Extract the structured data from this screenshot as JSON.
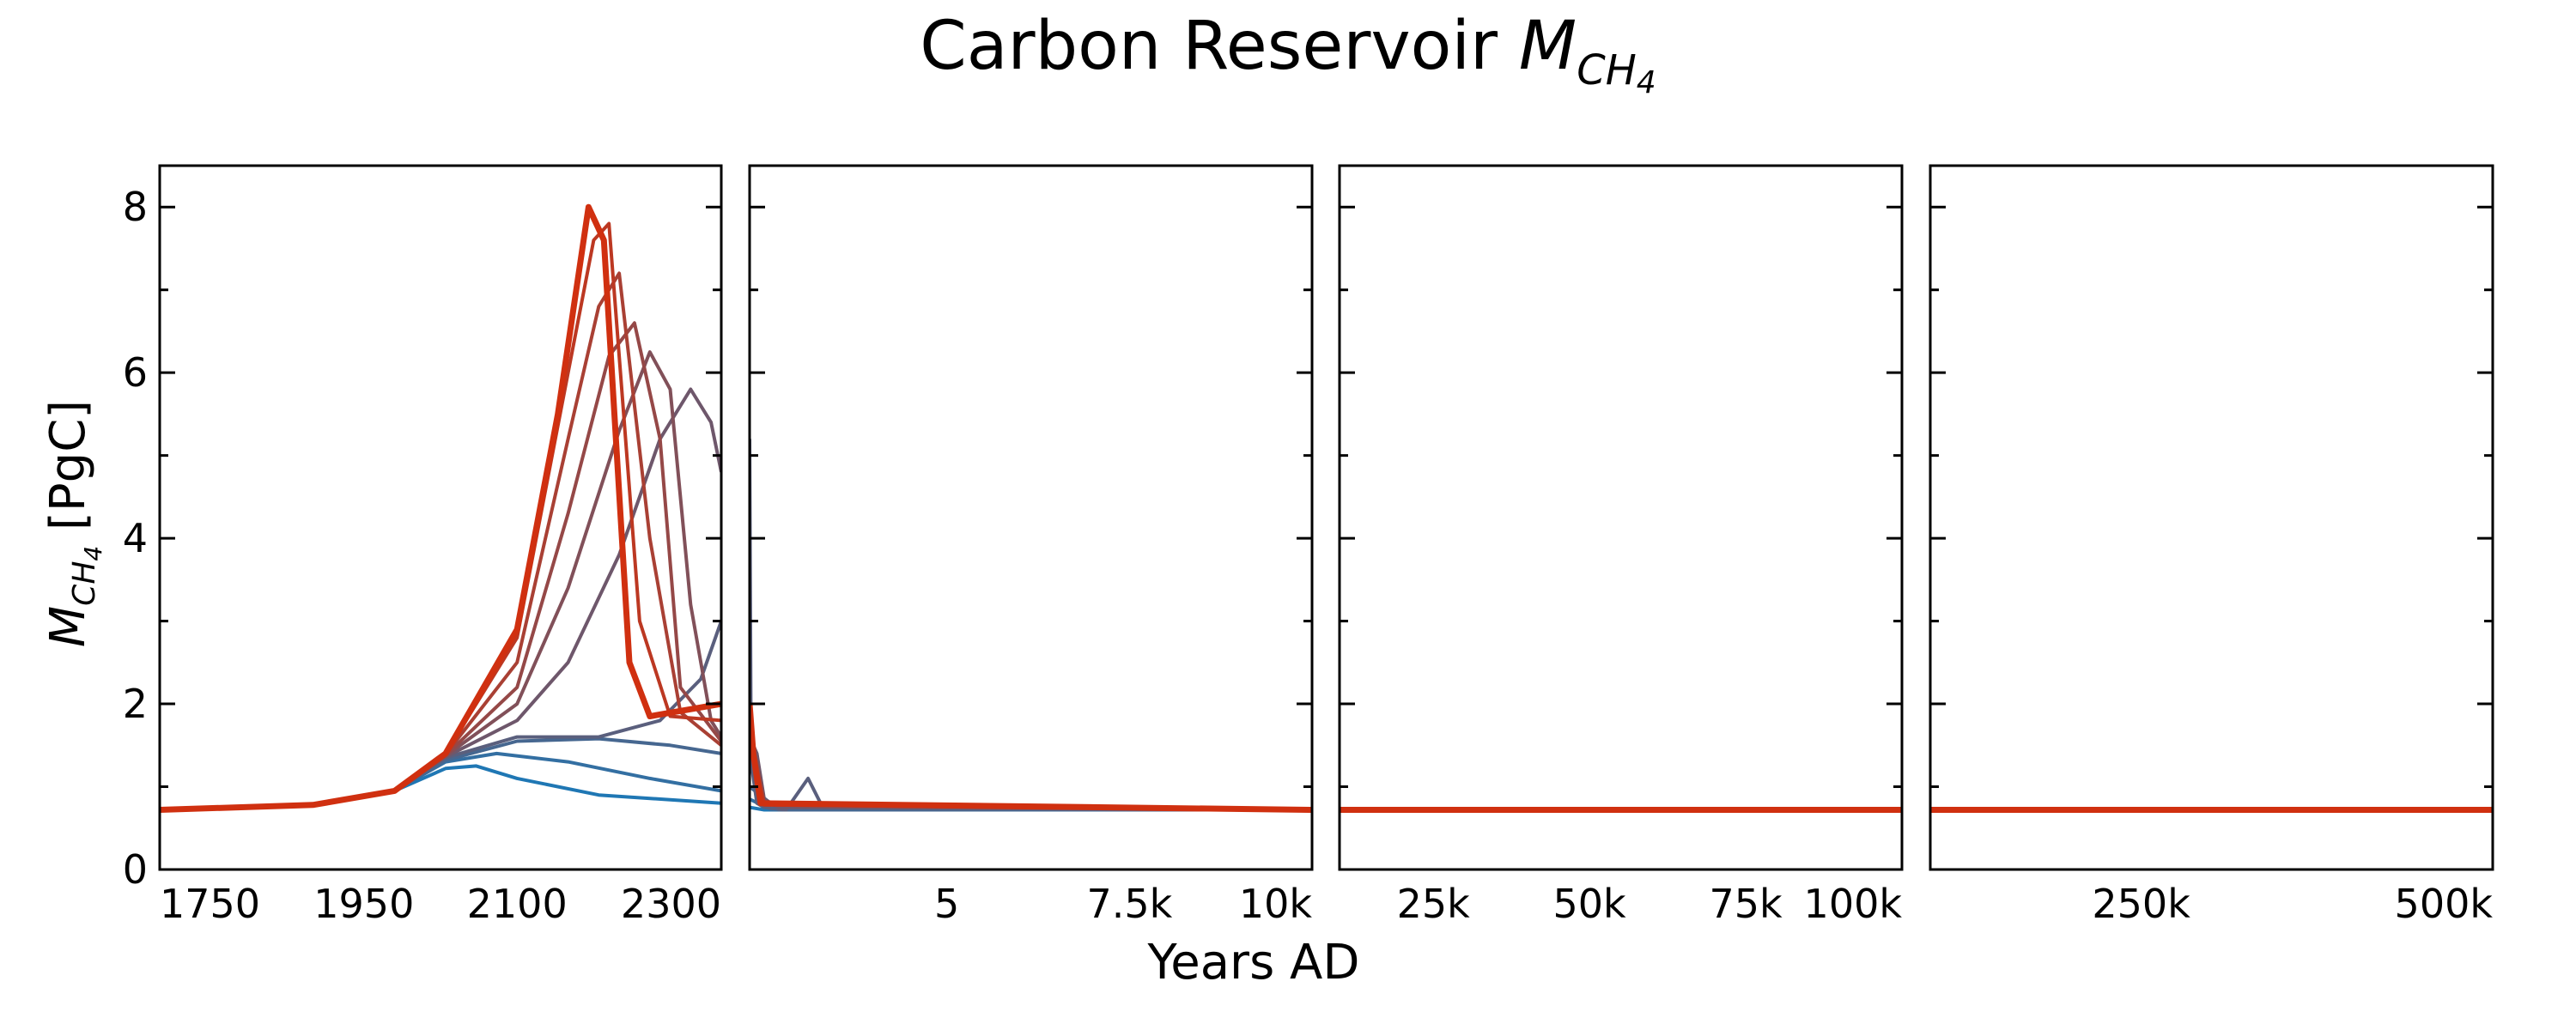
{
  "figure": {
    "title_main": "Carbon Reservoir ",
    "title_math": "M",
    "title_sub": "CH",
    "title_subsub": "4",
    "ylabel_math": "M",
    "ylabel_sub": "CH",
    "ylabel_subsub": "4",
    "ylabel_unit": " [PgC]",
    "xlabel": "Years AD"
  },
  "colors": {
    "start": "#1f77b4",
    "end": "#d03010",
    "axis": "#000000"
  },
  "chart_data": {
    "type": "line",
    "title": "Carbon Reservoir M_CH4",
    "xlabel": "Years AD",
    "ylabel": "M_CH4 [PgC]",
    "ylim": [
      0,
      8.5
    ],
    "yticks": [
      0,
      2,
      4,
      6,
      8
    ],
    "ytick_labels": [
      "0",
      "2",
      "4",
      "6",
      "8"
    ],
    "grid": false,
    "legend": "none",
    "panels": [
      {
        "xlim": [
          1750,
          2300
        ],
        "xtick_labels": [
          "1750",
          "1950",
          "2100",
          "2300"
        ]
      },
      {
        "xlim": [
          2300,
          10000
        ],
        "xtick_labels": [
          "5",
          "7.5k",
          "10k"
        ]
      },
      {
        "xlim": [
          10000,
          100000
        ],
        "xtick_labels": [
          "25k",
          "50k",
          "75k",
          "100k"
        ]
      },
      {
        "xlim": [
          100000,
          500000
        ],
        "xtick_labels": [
          "250k",
          "500k"
        ]
      }
    ],
    "series": [
      {
        "values_panel1": [
          [
            1750,
            0.72
          ],
          [
            1900,
            0.78
          ],
          [
            1980,
            0.95
          ],
          [
            2030,
            1.22
          ],
          [
            2060,
            1.25
          ],
          [
            2100,
            1.1
          ],
          [
            2180,
            0.9
          ],
          [
            2300,
            0.8
          ]
        ],
        "values_panel2": [
          [
            2300,
            0.75
          ],
          [
            2500,
            0.72
          ],
          [
            10000,
            0.72
          ]
        ]
      },
      {
        "values_panel1": [
          [
            1750,
            0.72
          ],
          [
            1900,
            0.78
          ],
          [
            1980,
            0.95
          ],
          [
            2030,
            1.3
          ],
          [
            2080,
            1.4
          ],
          [
            2150,
            1.3
          ],
          [
            2230,
            1.1
          ],
          [
            2300,
            0.95
          ]
        ],
        "values_panel2": [
          [
            2300,
            0.85
          ],
          [
            2600,
            0.72
          ],
          [
            10000,
            0.72
          ]
        ]
      },
      {
        "values_panel1": [
          [
            1750,
            0.72
          ],
          [
            1900,
            0.78
          ],
          [
            1980,
            0.95
          ],
          [
            2030,
            1.32
          ],
          [
            2100,
            1.55
          ],
          [
            2180,
            1.58
          ],
          [
            2250,
            1.5
          ],
          [
            2300,
            1.4
          ]
        ],
        "values_panel2": [
          [
            2300,
            1.0
          ],
          [
            2700,
            0.72
          ],
          [
            10000,
            0.72
          ]
        ]
      },
      {
        "values_panel1": [
          [
            1750,
            0.72
          ],
          [
            1900,
            0.78
          ],
          [
            1980,
            0.95
          ],
          [
            2030,
            1.35
          ],
          [
            2100,
            1.6
          ],
          [
            2180,
            1.6
          ],
          [
            2240,
            1.8
          ],
          [
            2280,
            2.3
          ],
          [
            2300,
            3.0
          ]
        ],
        "values_panel2": [
          [
            2300,
            5.2
          ],
          [
            2320,
            1.3
          ],
          [
            2400,
            0.8
          ],
          [
            2500,
            0.75
          ],
          [
            2800,
            0.72
          ],
          [
            3100,
            1.1
          ],
          [
            3300,
            0.75
          ],
          [
            10000,
            0.72
          ]
        ]
      },
      {
        "values_panel1": [
          [
            1750,
            0.72
          ],
          [
            1900,
            0.78
          ],
          [
            1980,
            0.95
          ],
          [
            2030,
            1.36
          ],
          [
            2100,
            1.8
          ],
          [
            2150,
            2.5
          ],
          [
            2200,
            3.8
          ],
          [
            2240,
            5.2
          ],
          [
            2270,
            5.8
          ],
          [
            2290,
            5.4
          ],
          [
            2300,
            4.8
          ]
        ],
        "values_panel2": [
          [
            2300,
            1.6
          ],
          [
            2400,
            1.4
          ],
          [
            2500,
            0.85
          ],
          [
            2700,
            0.75
          ],
          [
            10000,
            0.72
          ]
        ]
      },
      {
        "values_panel1": [
          [
            1750,
            0.72
          ],
          [
            1900,
            0.78
          ],
          [
            1980,
            0.95
          ],
          [
            2030,
            1.37
          ],
          [
            2100,
            2.0
          ],
          [
            2150,
            3.4
          ],
          [
            2200,
            5.3
          ],
          [
            2230,
            6.25
          ],
          [
            2250,
            5.8
          ],
          [
            2270,
            3.2
          ],
          [
            2290,
            1.8
          ],
          [
            2300,
            1.6
          ]
        ],
        "values_panel2": [
          [
            2300,
            1.55
          ],
          [
            2400,
            1.3
          ],
          [
            2500,
            0.8
          ],
          [
            10000,
            0.72
          ]
        ]
      },
      {
        "values_panel1": [
          [
            1750,
            0.72
          ],
          [
            1900,
            0.78
          ],
          [
            1980,
            0.95
          ],
          [
            2030,
            1.38
          ],
          [
            2100,
            2.2
          ],
          [
            2150,
            4.3
          ],
          [
            2190,
            6.2
          ],
          [
            2215,
            6.6
          ],
          [
            2240,
            5.2
          ],
          [
            2260,
            2.2
          ],
          [
            2300,
            1.55
          ]
        ],
        "values_panel2": [
          [
            2300,
            1.5
          ],
          [
            2400,
            1.25
          ],
          [
            2500,
            0.8
          ],
          [
            10000,
            0.72
          ]
        ]
      },
      {
        "values_panel1": [
          [
            1750,
            0.72
          ],
          [
            1900,
            0.78
          ],
          [
            1980,
            0.95
          ],
          [
            2030,
            1.39
          ],
          [
            2100,
            2.5
          ],
          [
            2150,
            5.2
          ],
          [
            2180,
            6.8
          ],
          [
            2200,
            7.2
          ],
          [
            2230,
            4.0
          ],
          [
            2260,
            1.9
          ],
          [
            2300,
            1.5
          ]
        ],
        "values_panel2": [
          [
            2300,
            1.5
          ],
          [
            2400,
            1.2
          ],
          [
            2500,
            0.78
          ],
          [
            10000,
            0.72
          ]
        ]
      },
      {
        "values_panel1": [
          [
            1750,
            0.72
          ],
          [
            1900,
            0.78
          ],
          [
            1980,
            0.95
          ],
          [
            2030,
            1.4
          ],
          [
            2100,
            2.8
          ],
          [
            2150,
            6.0
          ],
          [
            2175,
            7.6
          ],
          [
            2190,
            7.8
          ],
          [
            2220,
            3.0
          ],
          [
            2250,
            1.85
          ],
          [
            2300,
            1.8
          ]
        ],
        "values_panel2": [
          [
            2300,
            1.8
          ],
          [
            2400,
            1.2
          ],
          [
            2500,
            0.78
          ],
          [
            10000,
            0.72
          ]
        ]
      },
      {
        "values_panel1": [
          [
            1750,
            0.72
          ],
          [
            1900,
            0.78
          ],
          [
            1980,
            0.95
          ],
          [
            2030,
            1.4
          ],
          [
            2100,
            2.9
          ],
          [
            2140,
            5.5
          ],
          [
            2170,
            8.0
          ],
          [
            2185,
            7.6
          ],
          [
            2210,
            2.5
          ],
          [
            2230,
            1.85
          ],
          [
            2300,
            2.0
          ]
        ],
        "values_panel2": [
          [
            2300,
            2.0
          ],
          [
            2350,
            1.4
          ],
          [
            2450,
            0.8
          ],
          [
            10000,
            0.72
          ]
        ]
      }
    ]
  }
}
